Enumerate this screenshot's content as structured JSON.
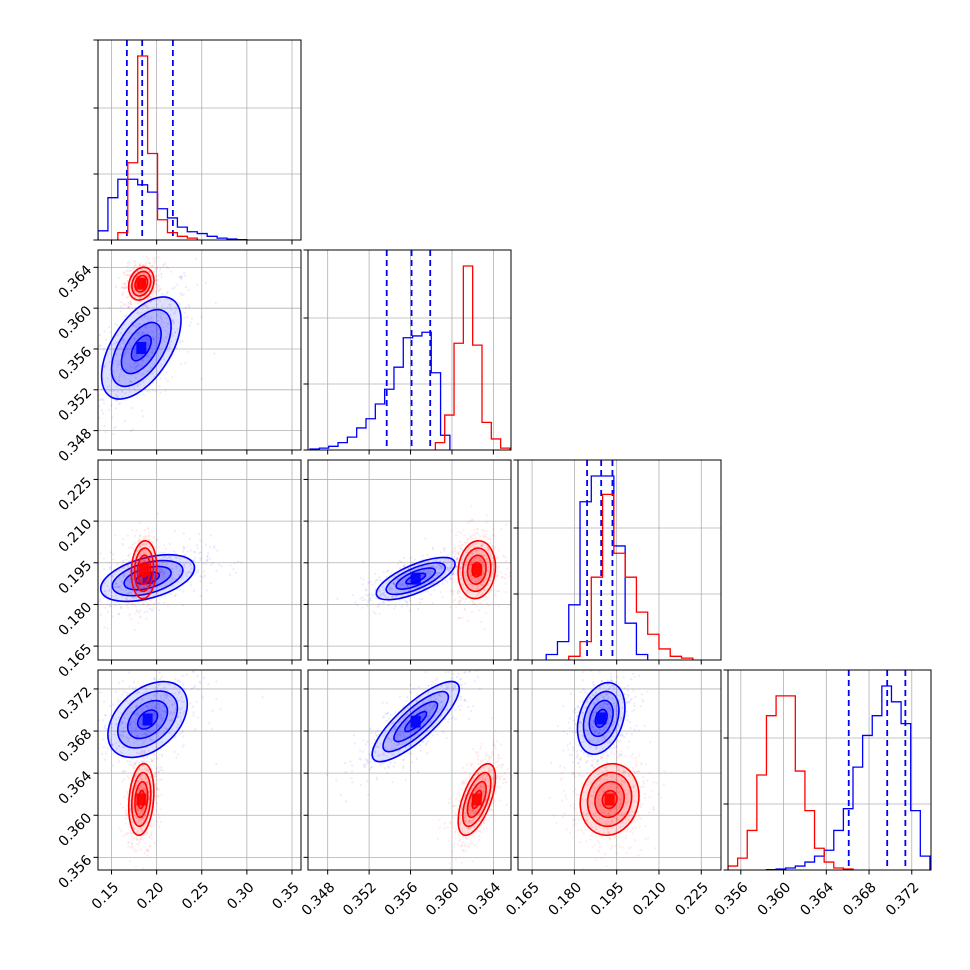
{
  "colors": {
    "blue": "#0000ff",
    "red": "#ff0000",
    "grid": "#b0b0b0"
  },
  "chart_data": {
    "type": "corner",
    "grid": true,
    "parameters": [
      {
        "index": 0,
        "range": [
          0.135,
          0.36
        ],
        "ticks": [
          0.15,
          0.2,
          0.25,
          0.3,
          0.35
        ],
        "tick_labels": [
          "0.15",
          "0.20",
          "0.25",
          "0.30",
          "0.35"
        ]
      },
      {
        "index": 1,
        "range": [
          0.3461,
          0.3657
        ],
        "ticks": [
          0.348,
          0.352,
          0.356,
          0.36,
          0.364
        ],
        "tick_labels": [
          "0.348",
          "0.352",
          "0.356",
          "0.360",
          "0.364"
        ]
      },
      {
        "index": 2,
        "range": [
          0.16,
          0.232
        ],
        "ticks": [
          0.165,
          0.18,
          0.195,
          0.21,
          0.225
        ],
        "tick_labels": [
          "0.165",
          "0.180",
          "0.195",
          "0.210",
          "0.225"
        ]
      },
      {
        "index": 3,
        "range": [
          0.3548,
          0.3738
        ],
        "ticks": [
          0.356,
          0.36,
          0.364,
          0.368,
          0.372
        ],
        "tick_labels": [
          "0.356",
          "0.360",
          "0.364",
          "0.368",
          "0.372"
        ]
      }
    ],
    "series": [
      {
        "name": "blue",
        "color": "#0000ff",
        "quantiles": [
          [
            0.167,
            0.184,
            0.218
          ],
          [
            0.3537,
            0.3561,
            0.3579
          ],
          [
            0.1845,
            0.1895,
            0.1935
          ],
          [
            0.3661,
            0.3697,
            0.3714
          ]
        ],
        "histograms": [
          {
            "edges": [
              0.135,
              0.146,
              0.157,
              0.168,
              0.179,
              0.19,
              0.201,
              0.212,
              0.223,
              0.234,
              0.245,
              0.256,
              0.267,
              0.278,
              0.289,
              0.3
            ],
            "counts": [
              0.05,
              0.23,
              0.33,
              0.33,
              0.3,
              0.26,
              0.17,
              0.12,
              0.07,
              0.045,
              0.035,
              0.02,
              0.01,
              0.005,
              0.002
            ]
          },
          {
            "edges": [
              0.3463,
              0.3472,
              0.3481,
              0.349,
              0.3499,
              0.3508,
              0.3517,
              0.3526,
              0.3535,
              0.3544,
              0.3553,
              0.3562,
              0.3571,
              0.358,
              0.3589,
              0.3598
            ],
            "counts": [
              0.005,
              0.01,
              0.02,
              0.04,
              0.07,
              0.12,
              0.17,
              0.25,
              0.33,
              0.45,
              0.61,
              0.62,
              0.64,
              0.42,
              0.08
            ]
          },
          {
            "edges": [
              0.17,
              0.174,
              0.178,
              0.182,
              0.186,
              0.19,
              0.194,
              0.198,
              0.202,
              0.206
            ],
            "counts": [
              0.03,
              0.1,
              0.3,
              0.86,
              1.0,
              1.0,
              0.62,
              0.2,
              0.03
            ]
          },
          {
            "edges": [
              0.3584,
              0.3593,
              0.3602,
              0.3611,
              0.362,
              0.3629,
              0.3638,
              0.3647,
              0.3656,
              0.3665,
              0.3674,
              0.3683,
              0.3692,
              0.3701,
              0.371,
              0.3719,
              0.3728,
              0.3737
            ],
            "counts": [
              0.002,
              0.005,
              0.01,
              0.02,
              0.04,
              0.07,
              0.1,
              0.2,
              0.31,
              0.52,
              0.68,
              0.78,
              0.93,
              0.85,
              0.74,
              0.3,
              0.07
            ]
          }
        ],
        "joint": {
          "1,0": {
            "cx": 0.183,
            "cy": 0.3561,
            "sx": 0.022,
            "sy": 0.0025,
            "rho": 0.55
          },
          "2,0": {
            "cx": 0.19,
            "cy": 0.1895,
            "sx": 0.026,
            "sy": 0.0042,
            "rho": 0.45
          },
          "2,1": {
            "cx": 0.3565,
            "cy": 0.1893,
            "sx": 0.0019,
            "sy": 0.0038,
            "rho": 0.7
          },
          "3,0": {
            "cx": 0.19,
            "cy": 0.3691,
            "sx": 0.022,
            "sy": 0.0018,
            "rho": 0.4
          },
          "3,1": {
            "cx": 0.3565,
            "cy": 0.3689,
            "sx": 0.0021,
            "sy": 0.0019,
            "rho": 0.82
          },
          "3,2": {
            "cx": 0.1895,
            "cy": 0.3692,
            "sx": 0.0042,
            "sy": 0.0017,
            "rho": 0.3
          }
        }
      },
      {
        "name": "red",
        "color": "#ff0000",
        "quantiles": [],
        "histograms": [
          {
            "edges": [
              0.157,
              0.168,
              0.179,
              0.19,
              0.201,
              0.212,
              0.223,
              0.234,
              0.245
            ],
            "counts": [
              0.04,
              0.42,
              1.0,
              0.47,
              0.11,
              0.04,
              0.02,
              0.01
            ]
          },
          {
            "edges": [
              0.3584,
              0.3593,
              0.3602,
              0.3611,
              0.362,
              0.3629,
              0.3638,
              0.3647,
              0.3656
            ],
            "counts": [
              0.04,
              0.19,
              0.58,
              1.0,
              0.57,
              0.15,
              0.06,
              0.01
            ]
          },
          {
            "edges": [
              0.178,
              0.182,
              0.186,
              0.19,
              0.194,
              0.198,
              0.202,
              0.206,
              0.21,
              0.214,
              0.218,
              0.222
            ],
            "counts": [
              0.02,
              0.1,
              0.45,
              0.9,
              0.58,
              0.45,
              0.26,
              0.14,
              0.06,
              0.02,
              0.01
            ]
          },
          {
            "edges": [
              0.3548,
              0.3557,
              0.3566,
              0.3575,
              0.3584,
              0.3593,
              0.3602,
              0.3611,
              0.362,
              0.3629,
              0.3638,
              0.3647,
              0.3656,
              0.3665
            ],
            "counts": [
              0.02,
              0.06,
              0.2,
              0.48,
              0.78,
              0.88,
              0.88,
              0.5,
              0.3,
              0.11,
              0.04,
              0.01,
              0.005
            ]
          }
        ],
        "joint": {
          "1,0": {
            "cx": 0.183,
            "cy": 0.3624,
            "sx": 0.007,
            "sy": 0.0008,
            "rho": 0.2
          },
          "2,0": {
            "cx": 0.186,
            "cy": 0.1925,
            "sx": 0.007,
            "sy": 0.0052,
            "rho": 0.1
          },
          "2,1": {
            "cx": 0.3624,
            "cy": 0.1925,
            "sx": 0.0009,
            "sy": 0.0052,
            "rho": 0.1
          },
          "3,0": {
            "cx": 0.183,
            "cy": 0.3615,
            "sx": 0.007,
            "sy": 0.0017,
            "rho": 0.2
          },
          "3,1": {
            "cx": 0.3624,
            "cy": 0.3615,
            "sx": 0.0009,
            "sy": 0.0017,
            "rho": 0.6
          },
          "3,2": {
            "cx": 0.1925,
            "cy": 0.3615,
            "sx": 0.0052,
            "sy": 0.0017,
            "rho": 0.1
          }
        }
      }
    ]
  }
}
